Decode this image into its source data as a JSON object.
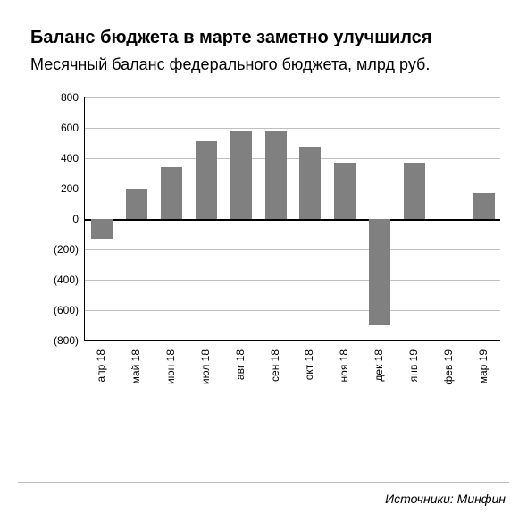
{
  "title": "Баланс бюджета в марте заметно улучшился",
  "subtitle": "Месячный баланс федерального бюджета, млрд руб.",
  "source": "Источники: Минфин",
  "chart": {
    "type": "bar",
    "categories": [
      "апр 18",
      "май 18",
      "июн 18",
      "июл 18",
      "авг 18",
      "сен 18",
      "окт 18",
      "ноя 18",
      "дек 18",
      "янв 19",
      "фев 19",
      "мар 19"
    ],
    "values": [
      -130,
      200,
      340,
      510,
      580,
      580,
      470,
      370,
      -700,
      370,
      0,
      170
    ],
    "bar_color": "#808080",
    "background_color": "#ffffff",
    "grid_color": "#c0c0c0",
    "axis_color": "#000000",
    "zero_line_color": "#000000",
    "ylim": [
      -800,
      800
    ],
    "ytick_step": 200,
    "yticks": [
      800,
      600,
      400,
      200,
      0,
      -200,
      -400,
      -600,
      -800
    ],
    "ytick_labels": [
      "800",
      "600",
      "400",
      "200",
      "0",
      "(200)",
      "(400)",
      "(600)",
      "(800)"
    ],
    "bar_width_ratio": 0.62,
    "tick_fontsize": 12,
    "title_fontsize": 20,
    "subtitle_fontsize": 18,
    "xlabel_rotation": -90
  }
}
